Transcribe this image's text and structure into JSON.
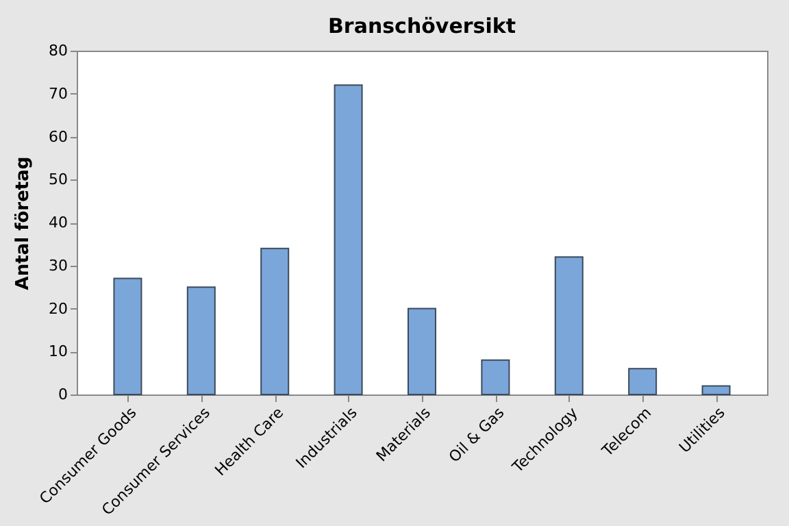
{
  "chart_data": {
    "type": "bar",
    "title": "Branschöversikt",
    "ylabel": "Antal företag",
    "categories": [
      "Consumer Goods",
      "Consumer Services",
      "Health Care",
      "Industrials",
      "Materials",
      "Oil & Gas",
      "Technology",
      "Telecom",
      "Utilities"
    ],
    "values": [
      27,
      25,
      34,
      72,
      20,
      8,
      32,
      6,
      2
    ],
    "color": "#7ba6d9",
    "ylim": [
      0,
      80
    ],
    "yticks": [
      0,
      10,
      20,
      30,
      40,
      50,
      60,
      70,
      80
    ],
    "grid": false
  }
}
